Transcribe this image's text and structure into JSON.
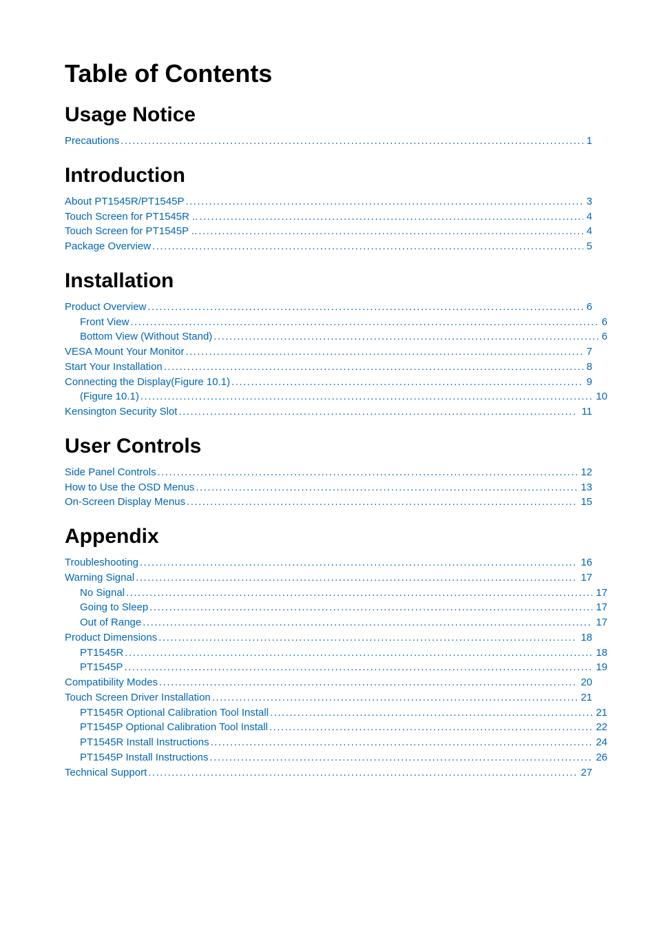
{
  "page_title": "Table of Contents",
  "link_color": "#0066b3",
  "heading_color": "#000000",
  "background_color": "#ffffff",
  "font_family": "Arial",
  "sections": [
    {
      "title": "Usage Notice",
      "entries": [
        {
          "label": "Precautions",
          "page": "1",
          "level": 0
        }
      ]
    },
    {
      "title": "Introduction",
      "entries": [
        {
          "label": "About PT1545R/PT1545P",
          "page": "3",
          "level": 0
        },
        {
          "label": "Touch Screen for PT1545R ..",
          "page": "4",
          "level": 0
        },
        {
          "label": "Touch Screen for PT1545P ..",
          "page": "4",
          "level": 0
        },
        {
          "label": "Package Overview",
          "page": "5",
          "level": 0
        }
      ]
    },
    {
      "title": "Installation",
      "entries": [
        {
          "label": "Product Overview",
          "page": "6",
          "level": 0
        },
        {
          "label": "Front View",
          "page": "6",
          "level": 1
        },
        {
          "label": "Bottom View (Without Stand)",
          "page": "6",
          "level": 1
        },
        {
          "label": "VESA Mount Your Monitor",
          "page": "7",
          "level": 0
        },
        {
          "label": "Start Your Installation",
          "page": "8",
          "level": 0
        },
        {
          "label": "Connecting the Display(Figure 10.1)",
          "page": "9",
          "level": 0
        },
        {
          "label": "(Figure 10.1)",
          "page": "10",
          "level": 1
        },
        {
          "label": "Kensington Security Slot",
          "page": "11",
          "level": 0
        }
      ]
    },
    {
      "title": "User Controls",
      "entries": [
        {
          "label": "Side Panel Controls",
          "page": "12",
          "level": 0
        },
        {
          "label": "How to Use the OSD Menus",
          "page": "13",
          "level": 0
        },
        {
          "label": "On-Screen Display Menus",
          "page": "15",
          "level": 0
        }
      ]
    },
    {
      "title": "Appendix",
      "entries": [
        {
          "label": "Troubleshooting",
          "page": "16",
          "level": 0
        },
        {
          "label": "Warning Signal",
          "page": "17",
          "level": 0
        },
        {
          "label": "No Signal",
          "page": "17",
          "level": 1
        },
        {
          "label": "Going to Sleep",
          "page": "17",
          "level": 1
        },
        {
          "label": "Out of Range",
          "page": "17",
          "level": 1
        },
        {
          "label": "Product Dimensions",
          "page": "18",
          "level": 0
        },
        {
          "label": "PT1545R",
          "page": "18",
          "level": 1
        },
        {
          "label": "PT1545P",
          "page": "19",
          "level": 1
        },
        {
          "label": "Compatibility Modes",
          "page": "20",
          "level": 0
        },
        {
          "label": "Touch Screen Driver Installation",
          "page": "21",
          "level": 0
        },
        {
          "label": "PT1545R Optional Calibration Tool Install",
          "page": "21",
          "level": 1
        },
        {
          "label": "PT1545P Optional Calibration Tool Install",
          "page": "22",
          "level": 1
        },
        {
          "label": "PT1545R Install Instructions",
          "page": "24",
          "level": 1
        },
        {
          "label": "PT1545P Install Instructions",
          "page": "26",
          "level": 1
        },
        {
          "label": "Technical Support",
          "page": "27",
          "level": 0
        }
      ]
    }
  ]
}
